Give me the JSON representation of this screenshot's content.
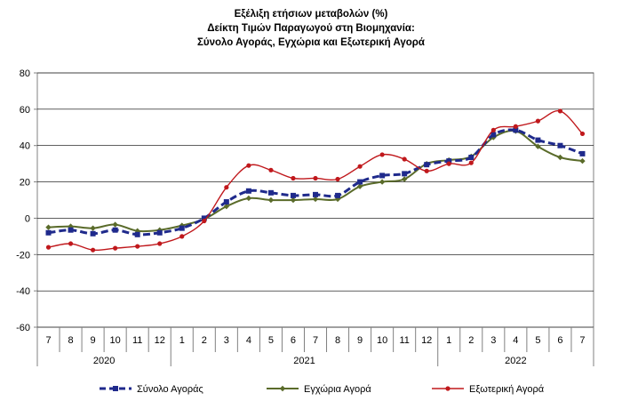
{
  "chart_data": {
    "type": "line",
    "title": [
      "Εξέλιξη ετήσιων μεταβολών (%)",
      "Δείκτη Τιμών Παραγωγού στη Βιομηχανία:",
      "Σύνολο Αγοράς, Εγχώρια και Εξωτερική Αγορά"
    ],
    "x_labels": [
      "7",
      "8",
      "9",
      "10",
      "11",
      "12",
      "1",
      "2",
      "3",
      "4",
      "5",
      "6",
      "7",
      "8",
      "9",
      "10",
      "11",
      "12",
      "1",
      "2",
      "3",
      "4",
      "5",
      "6",
      "7"
    ],
    "year_groups": [
      {
        "label": "2020",
        "start": 0,
        "end": 5
      },
      {
        "label": "2021",
        "start": 6,
        "end": 17
      },
      {
        "label": "2022",
        "start": 18,
        "end": 24
      }
    ],
    "ylim": [
      -60,
      80
    ],
    "yticks": [
      -60,
      -40,
      -20,
      0,
      20,
      40,
      60,
      80
    ],
    "grid": true,
    "legend_position": "bottom",
    "series": [
      {
        "name": "Σύνολο Αγοράς",
        "color": "#1f2a8c",
        "style": "dashed-square",
        "values": [
          -8,
          -6.5,
          -8.5,
          -6.5,
          -9,
          -8,
          -5.5,
          0,
          9,
          15,
          14,
          12.5,
          13,
          12.5,
          20,
          23.5,
          24.5,
          29.5,
          31.5,
          33.5,
          46,
          48.5,
          43,
          40,
          35.5
        ]
      },
      {
        "name": "Εγχώρια Αγορά",
        "color": "#5a6b2a",
        "style": "solid-diamond",
        "values": [
          -5,
          -4.5,
          -5.5,
          -3.5,
          -7,
          -6.5,
          -4,
          -0.5,
          6.5,
          11,
          10,
          10,
          10.5,
          10.5,
          17.5,
          20,
          21.5,
          30,
          32,
          34,
          44.5,
          48,
          39.5,
          33.5,
          31.5
        ]
      },
      {
        "name": "Εξωτερική Αγορά",
        "color": "#c0181c",
        "style": "solid-circle",
        "values": [
          -16,
          -14,
          -17.5,
          -16.5,
          -15.5,
          -14,
          -10,
          -1.5,
          17,
          29,
          26.5,
          22,
          22,
          21.5,
          28.5,
          35,
          32.5,
          26,
          30,
          30.5,
          48.5,
          50.5,
          53.5,
          59,
          46.5
        ]
      }
    ]
  }
}
